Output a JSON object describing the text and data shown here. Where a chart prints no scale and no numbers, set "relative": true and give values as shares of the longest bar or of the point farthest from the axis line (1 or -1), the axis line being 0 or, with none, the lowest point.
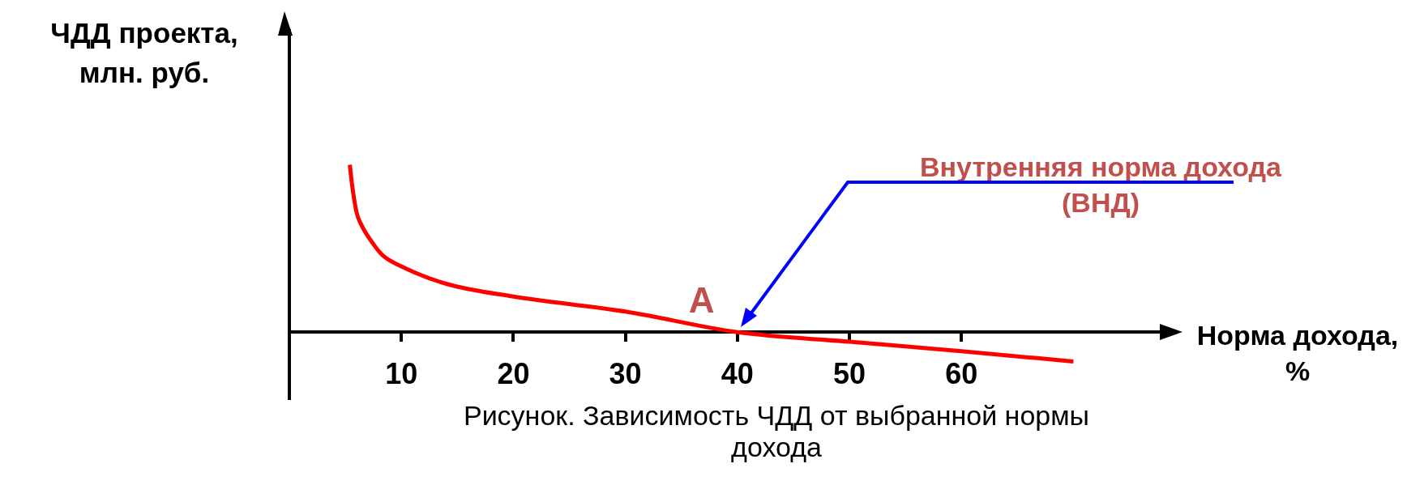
{
  "chart_data": {
    "type": "line",
    "relative": true,
    "ylabel": "ЧДД проекта, млн. руб.",
    "xlabel": "Норма дохода, %",
    "x": [
      5.4,
      5.6,
      6.0,
      6.4,
      7.6,
      8.4,
      10,
      14,
      20,
      30,
      40,
      50,
      60,
      70
    ],
    "series": [
      {
        "color": "#ff0000",
        "values": [
          1,
          0.88,
          0.716,
          0.645,
          0.517,
          0.455,
          0.393,
          0.289,
          0.213,
          0.123,
          0,
          -0.057,
          -0.114,
          -0.175
        ]
      }
    ],
    "xlim": [
      0,
      78
    ],
    "xticks": [
      10,
      20,
      30,
      40,
      50,
      60
    ],
    "grid": false,
    "legend": false,
    "marker": "none",
    "line_style": "solid",
    "annotations": [
      {
        "text": "А",
        "x": 40,
        "y": 0
      },
      "Внутренняя норма дохода (ВНД)",
      "Рисунок. Зависимость ЧДД от выбранной нормы дохода"
    ]
  }
}
